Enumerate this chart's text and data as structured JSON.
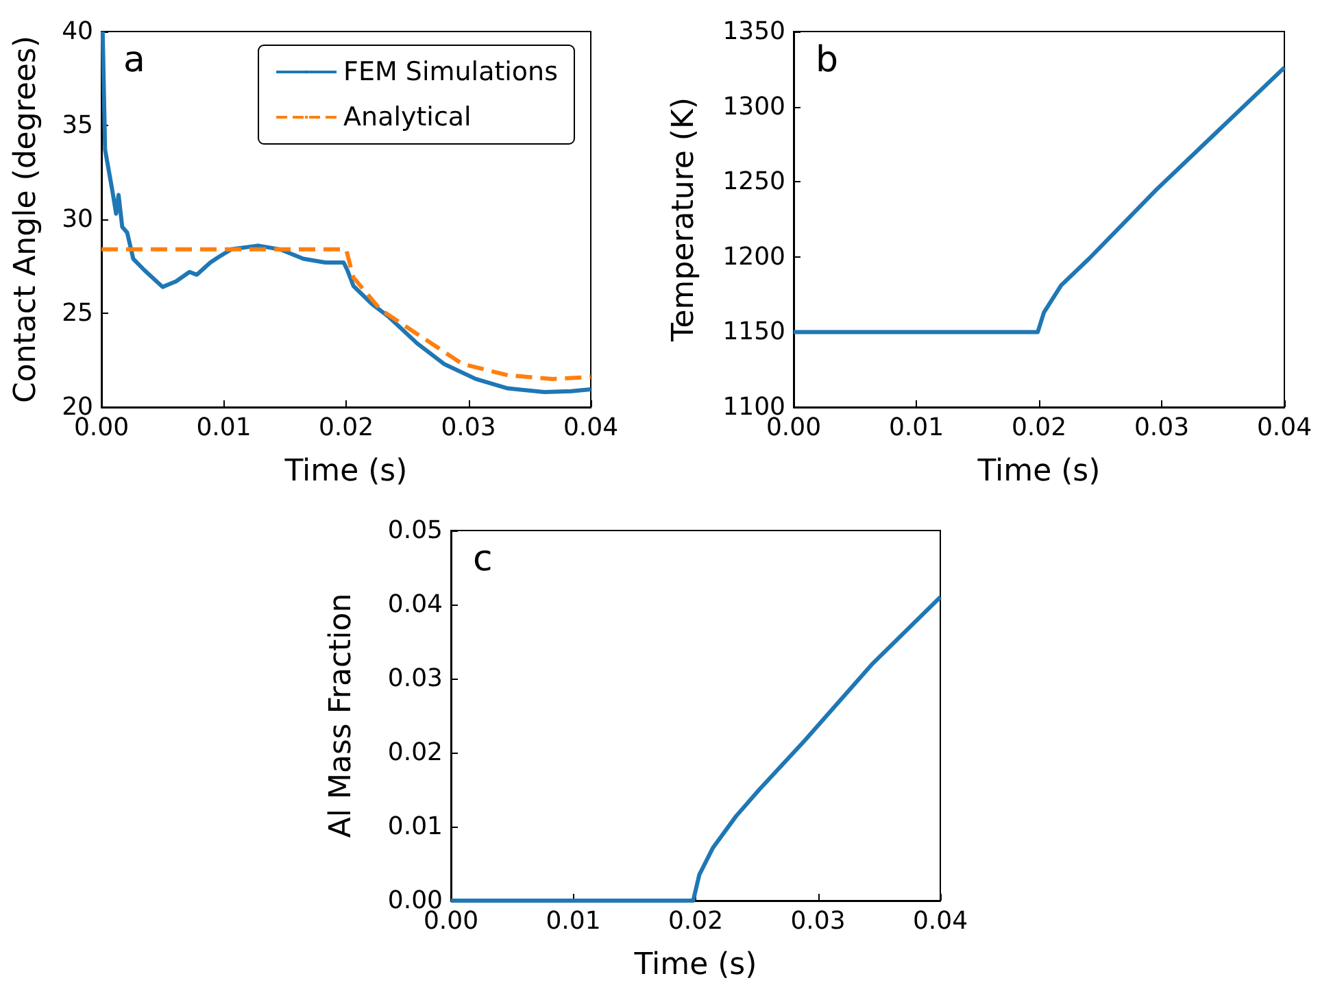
{
  "chart_data": [
    {
      "type": "line",
      "xlabel": "Time (s)",
      "ylabel": "Contact Angle (degrees)",
      "annotations": [
        "a"
      ],
      "xlim": [
        0,
        0.04
      ],
      "ylim": [
        20,
        40
      ],
      "xticks": [
        {
          "value": 0,
          "label": "0.00"
        },
        {
          "value": 0.01,
          "label": "0.01"
        },
        {
          "value": 0.02,
          "label": "0.02"
        },
        {
          "value": 0.03,
          "label": "0.03"
        },
        {
          "value": 0.04,
          "label": "0.04"
        }
      ],
      "yticks": [
        20,
        25,
        30,
        35,
        40
      ],
      "grid": false,
      "legend": "top right",
      "marker": "none",
      "series": [
        {
          "name": "FEM Simulations",
          "color": "#1f77b4",
          "line_style": "solid",
          "x": [
            0.0001,
            0.0003,
            0.0009,
            0.0012,
            0.0014,
            0.0017,
            0.0021,
            0.0026,
            0.0035,
            0.005,
            0.0061,
            0.0072,
            0.0078,
            0.0089,
            0.0096,
            0.0106,
            0.0128,
            0.0146,
            0.0165,
            0.0183,
            0.0198,
            0.0201,
            0.0206,
            0.0221,
            0.0235,
            0.0258,
            0.028,
            0.0306,
            0.0332,
            0.0362,
            0.0384,
            0.04
          ],
          "values": [
            40,
            33.7,
            31.5,
            30.3,
            31.3,
            29.6,
            29.3,
            27.9,
            27.3,
            26.4,
            26.7,
            27.2,
            27.05,
            27.7,
            28.0,
            28.4,
            28.6,
            28.4,
            27.9,
            27.7,
            27.7,
            27.3,
            26.45,
            25.5,
            24.8,
            23.4,
            22.3,
            21.5,
            21.0,
            20.8,
            20.85,
            20.95
          ]
        },
        {
          "name": "Analytical",
          "color": "#ff7f0e",
          "line_style": "dashed",
          "x": [
            0,
            0.02,
            0.0206,
            0.0228,
            0.0258,
            0.0295,
            0.0332,
            0.0369,
            0.04
          ],
          "values": [
            28.4,
            28.4,
            26.9,
            25.2,
            23.9,
            22.3,
            21.7,
            21.5,
            21.6
          ]
        }
      ]
    },
    {
      "type": "line",
      "xlabel": "Time (s)",
      "ylabel": "Temperature (K)",
      "annotations": [
        "b"
      ],
      "xlim": [
        0,
        0.04
      ],
      "ylim": [
        1100,
        1350
      ],
      "xticks": [
        {
          "value": 0,
          "label": "0.00"
        },
        {
          "value": 0.01,
          "label": "0.01"
        },
        {
          "value": 0.02,
          "label": "0.02"
        },
        {
          "value": 0.03,
          "label": "0.03"
        },
        {
          "value": 0.04,
          "label": "0.04"
        }
      ],
      "yticks": [
        1100,
        1150,
        1200,
        1250,
        1300,
        1350
      ],
      "grid": false,
      "marker": "none",
      "series": [
        {
          "color": "#1f77b4",
          "x": [
            0,
            0.0199,
            0.0204,
            0.0218,
            0.0241,
            0.0296,
            0.04
          ],
          "values": [
            1150,
            1150,
            1163,
            1181,
            1199,
            1245,
            1326
          ]
        }
      ]
    },
    {
      "type": "line",
      "xlabel": "Time (s)",
      "ylabel": "Al Mass Fraction",
      "annotations": [
        "c"
      ],
      "xlim": [
        0,
        0.04
      ],
      "ylim": [
        0,
        0.05
      ],
      "xticks": [
        {
          "value": 0,
          "label": "0.00"
        },
        {
          "value": 0.01,
          "label": "0.01"
        },
        {
          "value": 0.02,
          "label": "0.02"
        },
        {
          "value": 0.03,
          "label": "0.03"
        },
        {
          "value": 0.04,
          "label": "0.04"
        }
      ],
      "yticks": [
        {
          "value": 0,
          "label": "0.00"
        },
        {
          "value": 0.01,
          "label": "0.01"
        },
        {
          "value": 0.02,
          "label": "0.02"
        },
        {
          "value": 0.03,
          "label": "0.03"
        },
        {
          "value": 0.04,
          "label": "0.04"
        },
        {
          "value": 0.05,
          "label": "0.05"
        }
      ],
      "grid": false,
      "marker": "none",
      "series": [
        {
          "color": "#1f77b4",
          "x": [
            0,
            0.0198,
            0.0203,
            0.0214,
            0.0233,
            0.0252,
            0.0289,
            0.0344,
            0.04
          ],
          "values": [
            0,
            0,
            0.0035,
            0.0071,
            0.0114,
            0.015,
            0.0216,
            0.0319,
            0.041
          ]
        }
      ]
    }
  ]
}
